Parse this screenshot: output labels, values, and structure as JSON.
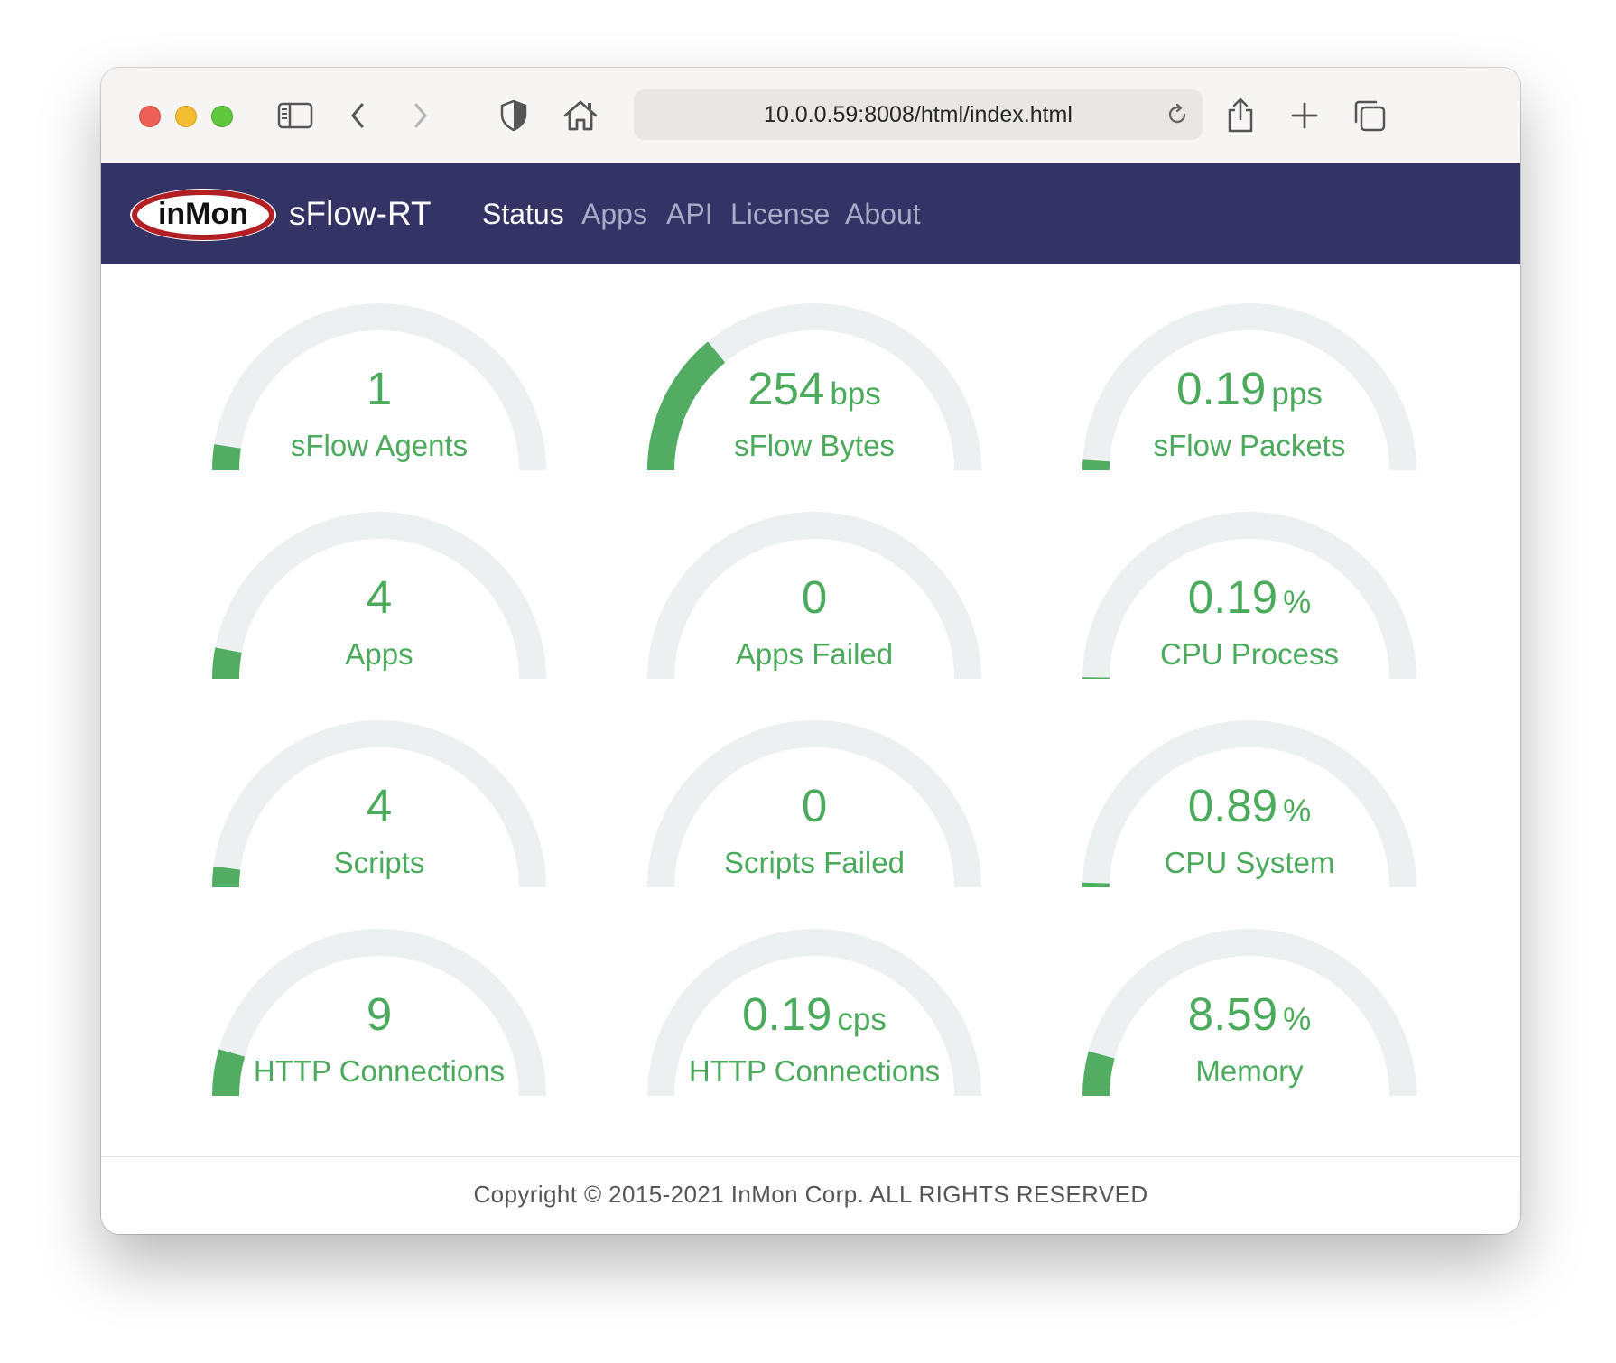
{
  "browser": {
    "url": "10.0.0.59:8008/html/index.html"
  },
  "navbar": {
    "logo_text": "inMon",
    "brand": "sFlow-RT",
    "links": [
      {
        "label": "Status",
        "active": true
      },
      {
        "label": "Apps",
        "active": false
      },
      {
        "label": "API",
        "active": false
      },
      {
        "label": "License",
        "active": false
      },
      {
        "label": "About",
        "active": false
      }
    ]
  },
  "colors": {
    "navbar": "#333366",
    "gauge_fill": "#52ad63",
    "gauge_track": "#edf0f0",
    "text_green": "#4caa5c"
  },
  "gauges": [
    {
      "value": "1",
      "unit": "",
      "label": "sFlow Agents",
      "fraction": 0.05
    },
    {
      "value": "254",
      "unit": "bps",
      "label": "sFlow Bytes",
      "fraction": 0.28
    },
    {
      "value": "0.19",
      "unit": "pps",
      "label": "sFlow Packets",
      "fraction": 0.02
    },
    {
      "value": "4",
      "unit": "",
      "label": "Apps",
      "fraction": 0.06
    },
    {
      "value": "0",
      "unit": "",
      "label": "Apps Failed",
      "fraction": 0.0
    },
    {
      "value": "0.19",
      "unit": "%",
      "label": "CPU Process",
      "fraction": 0.002
    },
    {
      "value": "4",
      "unit": "",
      "label": "Scripts",
      "fraction": 0.04
    },
    {
      "value": "0",
      "unit": "",
      "label": "Scripts Failed",
      "fraction": 0.0
    },
    {
      "value": "0.89",
      "unit": "%",
      "label": "CPU System",
      "fraction": 0.009
    },
    {
      "value": "9",
      "unit": "",
      "label": "HTTP Connections",
      "fraction": 0.09
    },
    {
      "value": "0.19",
      "unit": "cps",
      "label": "HTTP Connections",
      "fraction": 0.0
    },
    {
      "value": "8.59",
      "unit": "%",
      "label": "Memory",
      "fraction": 0.086
    }
  ],
  "footer": {
    "text": "Copyright © 2015-2021 InMon Corp. ALL RIGHTS RESERVED"
  }
}
